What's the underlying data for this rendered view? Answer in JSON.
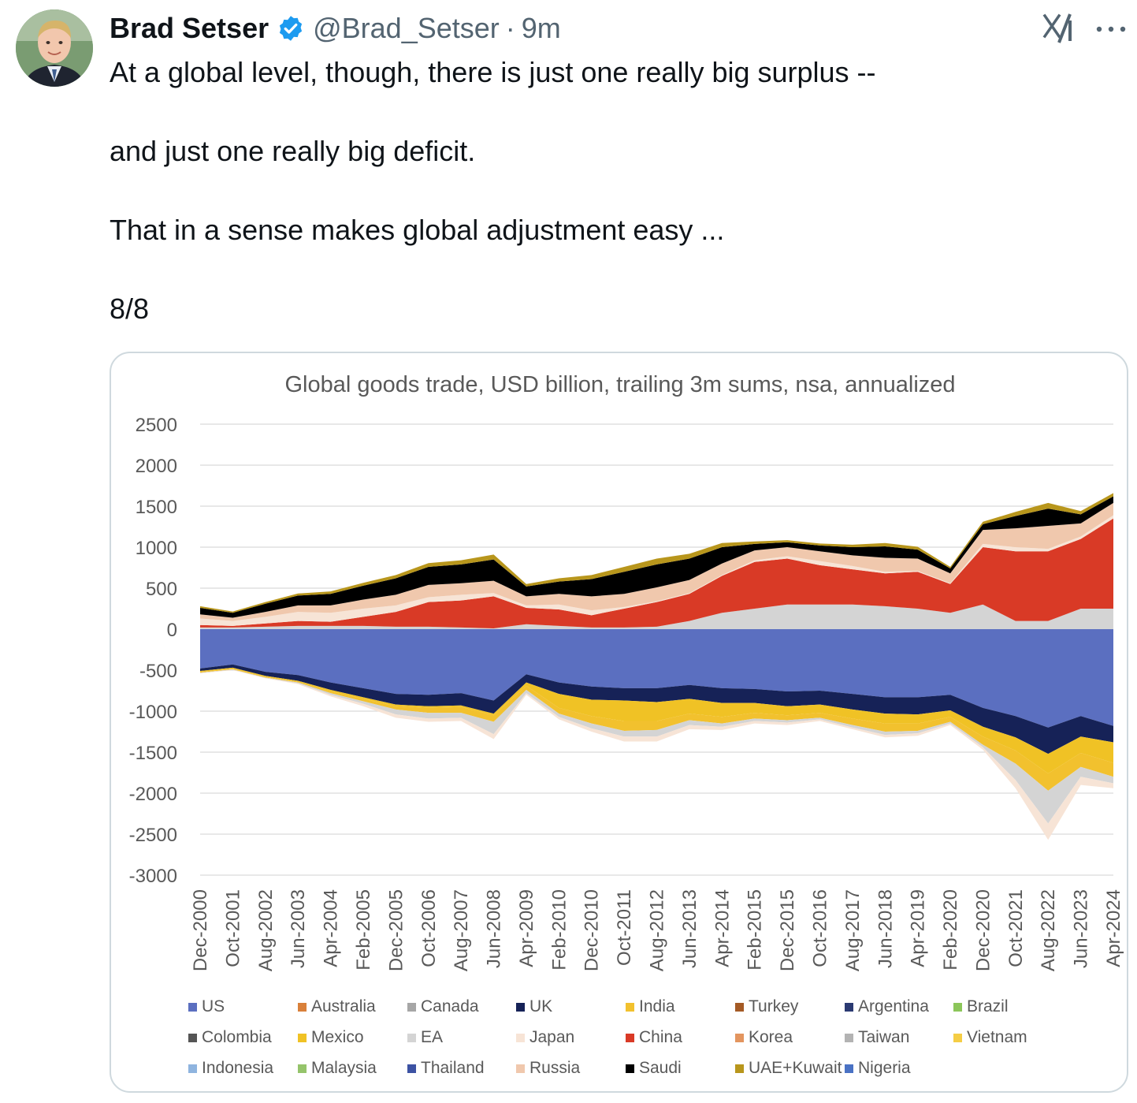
{
  "tweet": {
    "author_name": "Brad Setser",
    "handle": "@Brad_Setser",
    "separator": "·",
    "time": "9m",
    "lines": [
      "At a global level, though, there is just one really big surplus --",
      "and just one really big deficit.",
      "That in a sense makes global adjustment easy ...",
      "8/8"
    ],
    "icons": {
      "verified": "verified-badge-icon",
      "grok": "grok-icon",
      "more": "more-options-icon"
    },
    "colors": {
      "verified": "#1d9bf0",
      "text": "#0f1419",
      "muted": "#536471"
    }
  },
  "chart_data": {
    "type": "area",
    "stacked": true,
    "title": "Global goods trade, USD billion, trailing 3m sums, nsa, annualized",
    "xlabel": "",
    "ylabel": "",
    "ylim": [
      -3000,
      2500
    ],
    "yticks": [
      2500,
      2000,
      1500,
      1000,
      500,
      0,
      -500,
      -1000,
      -1500,
      -2000,
      -2500,
      -3000
    ],
    "grid": true,
    "legend_position": "bottom",
    "x": [
      "Dec-2000",
      "Oct-2001",
      "Aug-2002",
      "Jun-2003",
      "Apr-2004",
      "Feb-2005",
      "Dec-2005",
      "Oct-2006",
      "Aug-2007",
      "Jun-2008",
      "Apr-2009",
      "Feb-2010",
      "Dec-2010",
      "Oct-2011",
      "Aug-2012",
      "Jun-2013",
      "Apr-2014",
      "Feb-2015",
      "Dec-2015",
      "Oct-2016",
      "Aug-2017",
      "Jun-2018",
      "Apr-2019",
      "Feb-2020",
      "Dec-2020",
      "Oct-2021",
      "Aug-2022",
      "Jun-2023",
      "Apr-2024"
    ],
    "legend": [
      {
        "name": "US",
        "color": "#5b6fc0"
      },
      {
        "name": "Australia",
        "color": "#d9803a"
      },
      {
        "name": "Canada",
        "color": "#a6a6a6"
      },
      {
        "name": "UK",
        "color": "#162257"
      },
      {
        "name": "India",
        "color": "#f2c12e"
      },
      {
        "name": "Turkey",
        "color": "#a45a25"
      },
      {
        "name": "Argentina",
        "color": "#2b3a72"
      },
      {
        "name": "Brazil",
        "color": "#8cc65a"
      },
      {
        "name": "Colombia",
        "color": "#555555"
      },
      {
        "name": "Mexico",
        "color": "#f0c225"
      },
      {
        "name": "EA",
        "color": "#d4d4d4"
      },
      {
        "name": "Japan",
        "color": "#f7e4d6"
      },
      {
        "name": "China",
        "color": "#d93a26"
      },
      {
        "name": "Korea",
        "color": "#e3955f"
      },
      {
        "name": "Taiwan",
        "color": "#b3b3b3"
      },
      {
        "name": "Vietnam",
        "color": "#f5cd45"
      },
      {
        "name": "Indonesia",
        "color": "#8fb4df"
      },
      {
        "name": "Malaysia",
        "color": "#95c46b"
      },
      {
        "name": "Thailand",
        "color": "#3c52a3"
      },
      {
        "name": "Russia",
        "color": "#f0c8ad"
      },
      {
        "name": "Saudi",
        "color": "#000000"
      },
      {
        "name": "UAE+Kuwait",
        "color": "#b8961c"
      },
      {
        "name": "Nigeria",
        "color": "#4a72c4"
      }
    ],
    "surplus_series": [
      {
        "name": "EA",
        "values": [
          20,
          20,
          30,
          40,
          40,
          40,
          30,
          30,
          20,
          10,
          60,
          40,
          20,
          20,
          30,
          100,
          200,
          250,
          300,
          300,
          300,
          280,
          250,
          200,
          300,
          100,
          100,
          250,
          250
        ]
      },
      {
        "name": "China",
        "values": [
          30,
          20,
          40,
          60,
          50,
          110,
          180,
          300,
          330,
          390,
          200,
          200,
          150,
          230,
          300,
          330,
          450,
          570,
          560,
          480,
          430,
          400,
          450,
          350,
          700,
          850,
          850,
          850,
          1100
        ]
      },
      {
        "name": "Japan",
        "values": [
          80,
          60,
          80,
          110,
          110,
          100,
          80,
          60,
          70,
          40,
          30,
          60,
          60,
          20,
          10,
          10,
          10,
          20,
          30,
          50,
          40,
          20,
          10,
          10,
          40,
          50,
          30,
          30,
          40
        ]
      },
      {
        "name": "Russia",
        "values": [
          50,
          40,
          60,
          80,
          90,
          110,
          130,
          150,
          140,
          150,
          110,
          130,
          170,
          160,
          170,
          160,
          140,
          120,
          110,
          120,
          130,
          170,
          150,
          120,
          170,
          230,
          280,
          160,
          150
        ]
      },
      {
        "name": "Saudi",
        "values": [
          80,
          60,
          100,
          120,
          140,
          170,
          200,
          220,
          230,
          260,
          120,
          150,
          210,
          270,
          280,
          260,
          200,
          80,
          60,
          70,
          100,
          140,
          110,
          60,
          70,
          150,
          210,
          110,
          80
        ]
      },
      {
        "name": "UAE+Kuwait",
        "values": [
          20,
          15,
          20,
          25,
          30,
          35,
          40,
          45,
          50,
          60,
          30,
          40,
          50,
          60,
          70,
          60,
          50,
          30,
          25,
          25,
          30,
          40,
          35,
          20,
          30,
          50,
          70,
          40,
          40
        ]
      }
    ],
    "deficit_series": [
      {
        "name": "US",
        "values": [
          -480,
          -430,
          -520,
          -560,
          -650,
          -720,
          -790,
          -800,
          -780,
          -870,
          -550,
          -650,
          -700,
          -720,
          -720,
          -680,
          -720,
          -730,
          -760,
          -750,
          -790,
          -830,
          -830,
          -800,
          -960,
          -1060,
          -1200,
          -1060,
          -1180
        ]
      },
      {
        "name": "UK",
        "values": [
          -30,
          -40,
          -50,
          -70,
          -90,
          -110,
          -130,
          -140,
          -150,
          -160,
          -100,
          -140,
          -160,
          -150,
          -170,
          -170,
          -180,
          -170,
          -180,
          -170,
          -190,
          -200,
          -210,
          -190,
          -230,
          -260,
          -320,
          -250,
          -200
        ]
      },
      {
        "name": "Mexico",
        "values": [
          -10,
          -10,
          -10,
          -10,
          -20,
          -20,
          -20,
          -20,
          -20,
          -20,
          -40,
          -170,
          -200,
          -250,
          -230,
          -180,
          -170,
          -120,
          -110,
          -100,
          -110,
          -120,
          -110,
          -80,
          -120,
          -160,
          -240,
          -200,
          -250
        ]
      },
      {
        "name": "India",
        "values": [
          -10,
          -10,
          -10,
          -10,
          -20,
          -30,
          -40,
          -60,
          -70,
          -80,
          -50,
          -70,
          -90,
          -120,
          -110,
          -80,
          -80,
          -70,
          -60,
          -60,
          -80,
          -100,
          -90,
          -60,
          -100,
          -160,
          -210,
          -170,
          -170
        ]
      },
      {
        "name": "EA",
        "values": [
          -5,
          -5,
          -5,
          -10,
          -20,
          -30,
          -60,
          -70,
          -60,
          -150,
          -40,
          -40,
          -60,
          -70,
          -80,
          -60,
          -40,
          -30,
          -30,
          -20,
          -30,
          -40,
          -30,
          -20,
          -30,
          -200,
          -400,
          -120,
          -80
        ]
      },
      {
        "name": "Japan",
        "values": [
          -5,
          -5,
          -5,
          -10,
          -20,
          -30,
          -40,
          -40,
          -40,
          -60,
          -20,
          -30,
          -40,
          -60,
          -60,
          -50,
          -40,
          -30,
          -30,
          -20,
          -20,
          -30,
          -30,
          -20,
          -30,
          -100,
          -200,
          -100,
          -60
        ]
      }
    ]
  }
}
